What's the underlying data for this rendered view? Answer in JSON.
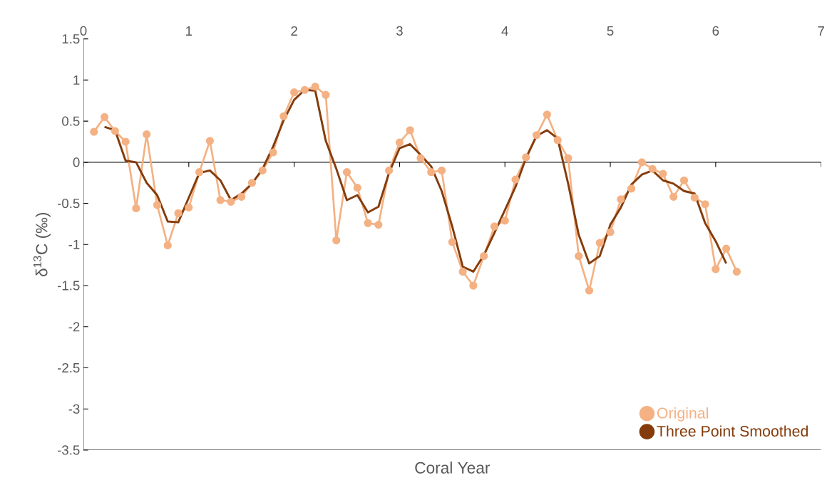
{
  "chart_data": {
    "type": "line",
    "xlabel": "Coral Year",
    "ylabel": "δ$^{13}$C (‰)",
    "xlim": [
      0,
      7
    ],
    "xticks": [
      0,
      1,
      2,
      3,
      4,
      5,
      6,
      7
    ],
    "ylim": [
      -3.5,
      1.5
    ],
    "yticks": [
      -3.5,
      -3,
      -2.5,
      -2,
      -1.5,
      -1,
      -0.5,
      0,
      0.5,
      1,
      1.5
    ],
    "legend": "bottom right",
    "line_style": "solid",
    "series": [
      {
        "name": "Original",
        "color": "#f4b183",
        "marker": "circle",
        "x": [
          0.1,
          0.2,
          0.3,
          0.4,
          0.5,
          0.6,
          0.7,
          0.8,
          0.9,
          1.0,
          1.1,
          1.2,
          1.3,
          1.4,
          1.5,
          1.6,
          1.7,
          1.8,
          1.9,
          2.0,
          2.1,
          2.2,
          2.3,
          2.4,
          2.5,
          2.6,
          2.7,
          2.8,
          2.9,
          3.0,
          3.1,
          3.2,
          3.3,
          3.4,
          3.5,
          3.6,
          3.7,
          3.8,
          3.9,
          4.0,
          4.1,
          4.2,
          4.3,
          4.4,
          4.5,
          4.6,
          4.7,
          4.8,
          4.9,
          5.0,
          5.1,
          5.2,
          5.3,
          5.4,
          5.5,
          5.6,
          5.7,
          5.8,
          5.9,
          6.0,
          6.1,
          6.2
        ],
        "values": [
          0.37,
          0.55,
          0.38,
          0.25,
          -0.56,
          0.34,
          -0.52,
          -1.01,
          -0.62,
          -0.55,
          -0.12,
          0.26,
          -0.46,
          -0.48,
          -0.42,
          -0.25,
          -0.1,
          0.12,
          0.56,
          0.85,
          0.88,
          0.92,
          0.82,
          -0.95,
          -0.12,
          -0.31,
          -0.74,
          -0.76,
          -0.1,
          0.24,
          0.39,
          0.05,
          -0.12,
          -0.1,
          -0.97,
          -1.33,
          -1.5,
          -1.14,
          -0.78,
          -0.71,
          -0.21,
          0.06,
          0.33,
          0.58,
          0.27,
          0.05,
          -1.14,
          -1.56,
          -0.98,
          -0.85,
          -0.45,
          -0.32,
          0.0,
          -0.08,
          -0.14,
          -0.42,
          -0.22,
          -0.43,
          -0.51,
          -1.3,
          -1.05,
          -1.33
        ]
      },
      {
        "name": "Three Point Smoothed",
        "color": "#843c0c",
        "marker": "none",
        "x": [
          0.2,
          0.3,
          0.4,
          0.5,
          0.6,
          0.7,
          0.8,
          0.9,
          1.0,
          1.1,
          1.2,
          1.3,
          1.4,
          1.5,
          1.6,
          1.7,
          1.8,
          1.9,
          2.0,
          2.1,
          2.2,
          2.3,
          2.4,
          2.5,
          2.6,
          2.7,
          2.8,
          2.9,
          3.0,
          3.1,
          3.2,
          3.3,
          3.4,
          3.5,
          3.6,
          3.7,
          3.8,
          3.9,
          4.0,
          4.1,
          4.2,
          4.3,
          4.4,
          4.5,
          4.6,
          4.7,
          4.8,
          4.9,
          5.0,
          5.1,
          5.2,
          5.3,
          5.4,
          5.5,
          5.6,
          5.7,
          5.8,
          5.9,
          6.0,
          6.1
        ],
        "values": [
          0.43,
          0.39,
          0.02,
          0.0,
          -0.25,
          -0.4,
          -0.72,
          -0.73,
          -0.43,
          -0.13,
          -0.1,
          -0.22,
          -0.46,
          -0.38,
          -0.26,
          -0.08,
          0.19,
          0.51,
          0.76,
          0.88,
          0.87,
          0.26,
          -0.08,
          -0.46,
          -0.4,
          -0.61,
          -0.54,
          -0.13,
          0.17,
          0.22,
          0.09,
          -0.05,
          -0.35,
          -0.78,
          -1.27,
          -1.33,
          -1.13,
          -0.86,
          -0.58,
          -0.3,
          0.05,
          0.32,
          0.39,
          0.29,
          -0.26,
          -0.88,
          -1.23,
          -1.14,
          -0.76,
          -0.55,
          -0.27,
          -0.15,
          -0.1,
          -0.22,
          -0.26,
          -0.35,
          -0.38,
          -0.74,
          -0.96,
          -1.23
        ]
      }
    ]
  }
}
